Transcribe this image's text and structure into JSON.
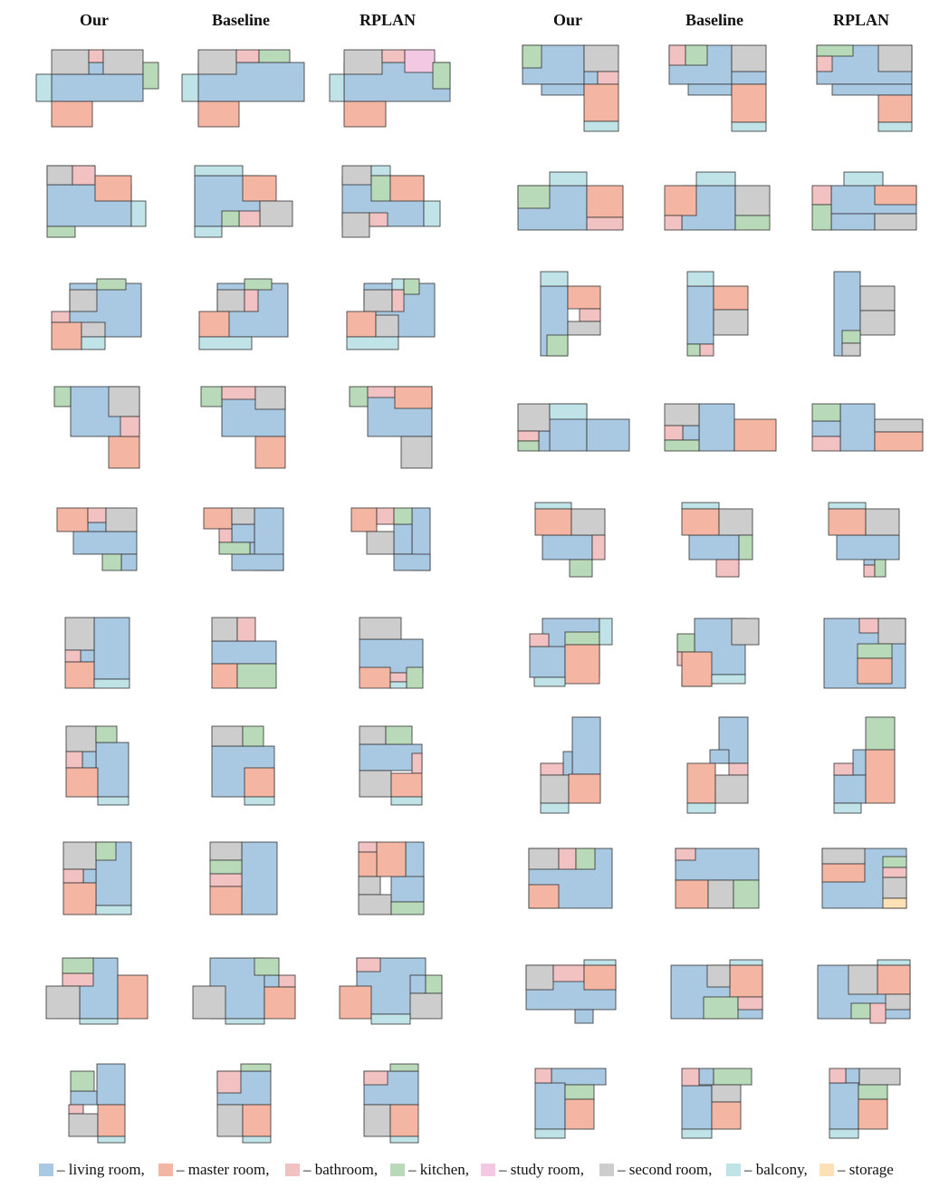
{
  "headers": [
    "Our",
    "Baseline",
    "RPLAN",
    "Our",
    "Baseline",
    "RPLAN"
  ],
  "legend": [
    {
      "label": "– living room,",
      "color": "#a9c8e2"
    },
    {
      "label": "– master room,",
      "color": "#f4b6a2"
    },
    {
      "label": "– bathroom,",
      "color": "#f2c2c2"
    },
    {
      "label": "– kitchen,",
      "color": "#b9dab8"
    },
    {
      "label": "– study room,",
      "color": "#f2c8e2"
    },
    {
      "label": "– second room,",
      "color": "#cdcdcd"
    },
    {
      "label": "– balcony,",
      "color": "#bfe3e6"
    },
    {
      "label": "– storage",
      "color": "#fde0b5"
    }
  ]
}
